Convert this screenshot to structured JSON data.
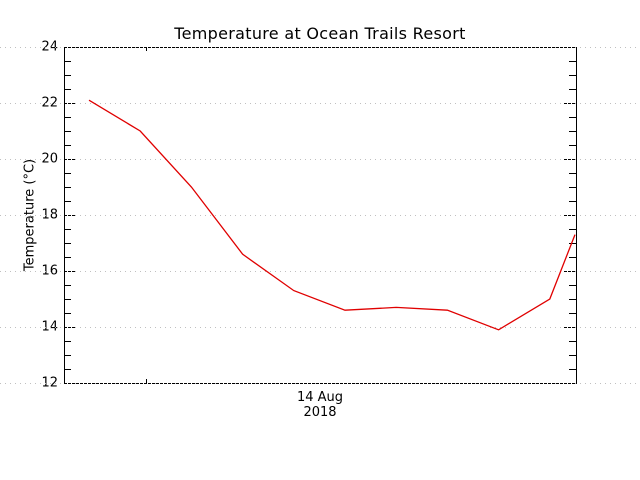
{
  "chart_data": {
    "type": "line",
    "title": "Temperature at Ocean Trails Resort",
    "xlabel": "14 Aug\n2018",
    "xlabel_lines": [
      "14 Aug",
      "2018"
    ],
    "ylabel": "Temperature (°C)",
    "ylim": [
      12,
      24
    ],
    "yticks": [
      12,
      14,
      16,
      18,
      20,
      22,
      24
    ],
    "ytick_labels": [
      "12",
      "14",
      "16",
      "18",
      "20",
      "22",
      "24"
    ],
    "xtick_labels": [
      "14 Aug 2018"
    ],
    "grid": true,
    "legend": null,
    "series": [
      {
        "name": "Temperature",
        "color": "#e00000",
        "x_index": [
          0,
          1,
          2,
          3,
          4,
          5,
          6,
          7,
          8,
          9,
          10
        ],
        "values": [
          22.1,
          21.0,
          19.0,
          16.6,
          15.3,
          14.6,
          14.7,
          14.6,
          13.9,
          15.0,
          17.3
        ]
      }
    ]
  },
  "colors": {
    "line": "#e00000",
    "grid": "#c0c0c0",
    "axis": "#000000"
  }
}
